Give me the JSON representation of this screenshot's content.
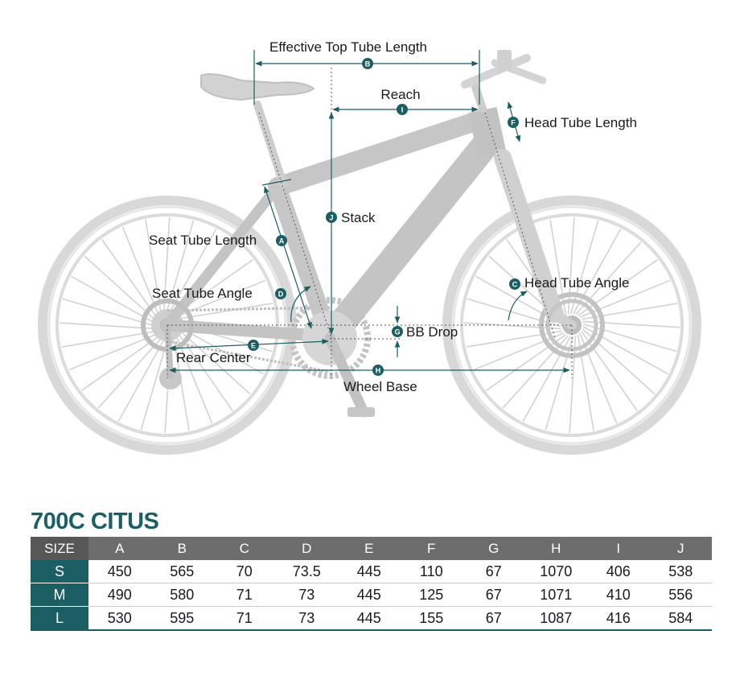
{
  "labels": {
    "effective_top_tube": "Effective Top Tube Length",
    "reach": "Reach",
    "head_tube_length": "Head Tube Length",
    "stack": "Stack",
    "seat_tube_length": "Seat Tube Length",
    "seat_tube_angle": "Seat Tube Angle",
    "head_tube_angle": "Head Tube Angle",
    "bb_drop": "BB Drop",
    "rear_center": "Rear Center",
    "wheel_base": "Wheel Base"
  },
  "badges": {
    "a": "A",
    "b": "B",
    "c": "C",
    "d": "D",
    "e": "E",
    "f": "F",
    "g": "G",
    "h": "H",
    "i": "I",
    "j": "J"
  },
  "title": "700C CITUS",
  "table": {
    "size_header": "SIZE",
    "columns": [
      "A",
      "B",
      "C",
      "D",
      "E",
      "F",
      "G",
      "H",
      "I",
      "J"
    ],
    "rows": [
      {
        "size": "S",
        "values": [
          "450",
          "565",
          "70",
          "73.5",
          "445",
          "110",
          "67",
          "1070",
          "406",
          "538"
        ]
      },
      {
        "size": "M",
        "values": [
          "490",
          "580",
          "71",
          "73",
          "445",
          "125",
          "67",
          "1071",
          "410",
          "556"
        ]
      },
      {
        "size": "L",
        "values": [
          "530",
          "595",
          "71",
          "73",
          "445",
          "155",
          "67",
          "1087",
          "416",
          "584"
        ]
      }
    ]
  },
  "colors": {
    "accent": "#1b5e63",
    "header_gray": "#6d6d6d",
    "bike_gray": "#c9c9c9"
  }
}
